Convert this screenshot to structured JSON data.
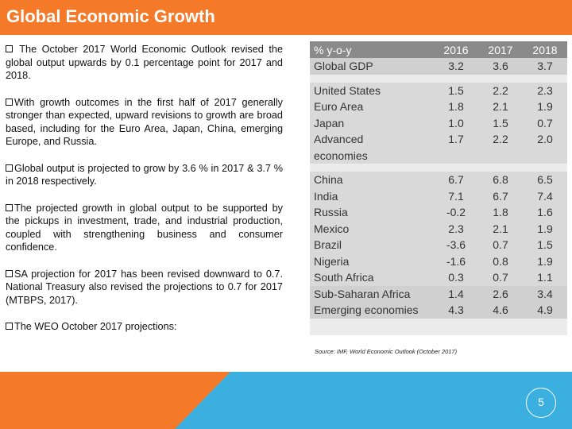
{
  "title": "Global Economic Growth",
  "bullets": [
    "The October 2017 World Economic Outlook revised the global output upwards by 0.1 percentage point for 2017 and 2018.",
    "With growth outcomes in the first half of 2017 generally stronger than expected, upward revisions to growth are broad based, including for the Euro Area, Japan, China, emerging Europe, and Russia.",
    "Global output is projected to grow by 3.6 % in 2017 & 3.7 % in 2018 respectively.",
    "The projected growth in global output  to be supported by the pickups in investment, trade, and industrial production, coupled with strengthening business and consumer confidence.",
    "SA projection for 2017 has been revised downward to 0.7. National Treasury also revised the projections to 0.7 for 2017 (MTBPS, 2017).",
    "The WEO October 2017 projections:"
  ],
  "table": {
    "headers": [
      "% y-o-y",
      "2016",
      "2017",
      "2018"
    ],
    "global": [
      "Global GDP",
      "3.2",
      "3.6",
      "3.7"
    ],
    "advanced": [
      [
        "United States",
        "1.5",
        "2.2",
        "2.3"
      ],
      [
        "Euro Area",
        "1.8",
        "2.1",
        "1.9"
      ],
      [
        "Japan",
        "1.0",
        "1.5",
        "0.7"
      ],
      [
        "Advanced",
        "1.7",
        "2.2",
        "2.0"
      ],
      [
        "economies",
        "",
        "",
        ""
      ]
    ],
    "emerging": [
      [
        "China",
        "6.7",
        "6.8",
        "6.5"
      ],
      [
        "India",
        "7.1",
        "6.7",
        "7.4"
      ],
      [
        "Russia",
        "-0.2",
        "1.8",
        "1.6"
      ],
      [
        "Mexico",
        "2.3",
        "2.1",
        "1.9"
      ],
      [
        "Brazil",
        "-3.6",
        "0.7",
        "1.5"
      ],
      [
        "Nigeria",
        "-1.6",
        "0.8",
        "1.9"
      ],
      [
        "South Africa",
        "0.3",
        "0.7",
        "1.1"
      ],
      [
        "Sub-Saharan Africa",
        "1.4",
        "2.6",
        "3.4"
      ],
      [
        "Emerging economies",
        "4.3",
        "4.6",
        "4.9"
      ]
    ]
  },
  "source": "Source: IMF, World Economic Outlook (October 2017)",
  "page_number": "5",
  "colors": {
    "title_bar": "#f47a2a",
    "band_left": "#f47a2a",
    "band_right": "#3bb0e0"
  }
}
